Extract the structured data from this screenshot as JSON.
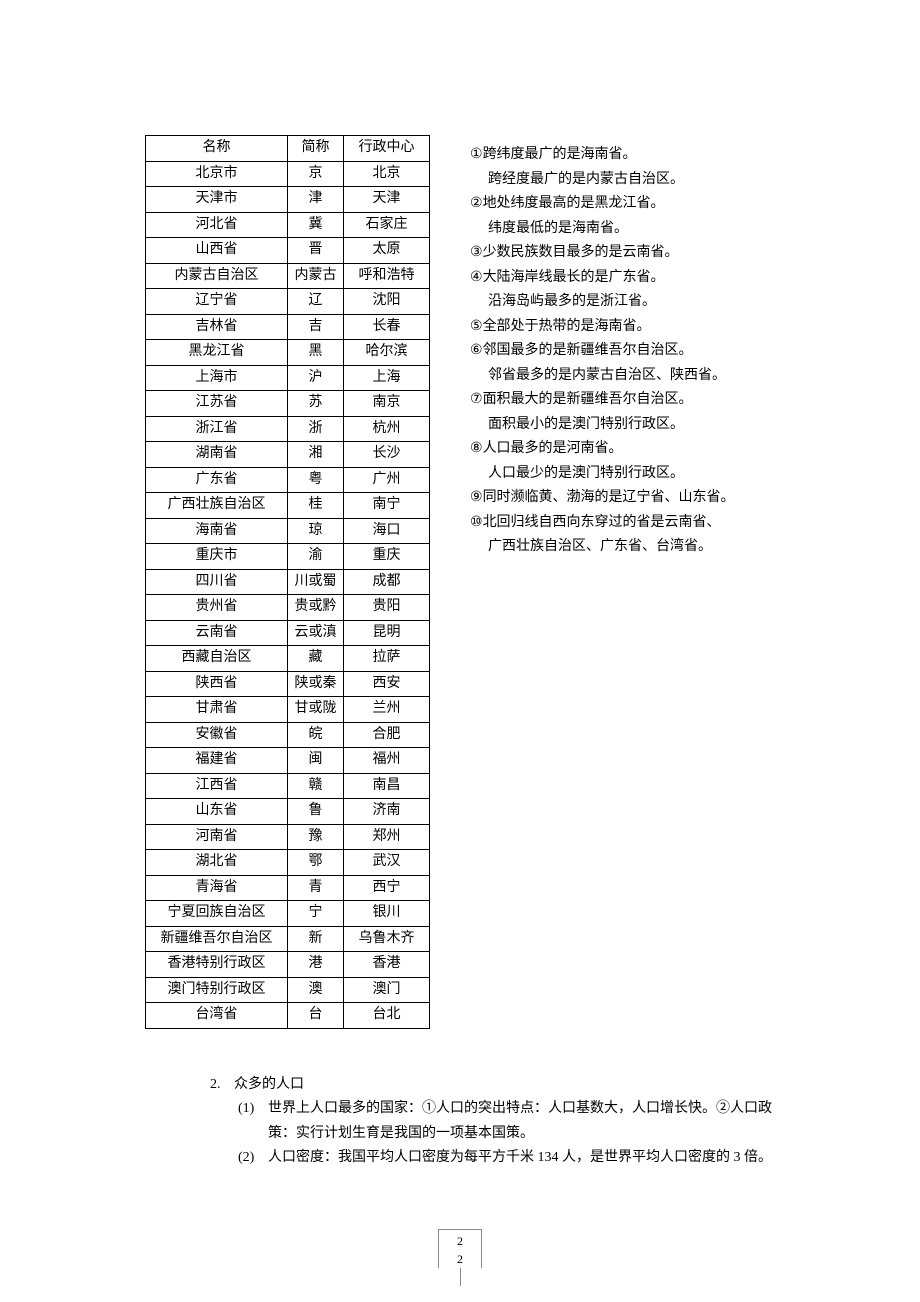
{
  "table": {
    "headers": [
      "名称",
      "简称",
      "行政中心"
    ],
    "rows": [
      [
        "北京市",
        "京",
        "北京"
      ],
      [
        "天津市",
        "津",
        "天津"
      ],
      [
        "河北省",
        "冀",
        "石家庄"
      ],
      [
        "山西省",
        "晋",
        "太原"
      ],
      [
        "内蒙古自治区",
        "内蒙古",
        "呼和浩特"
      ],
      [
        "辽宁省",
        "辽",
        "沈阳"
      ],
      [
        "吉林省",
        "吉",
        "长春"
      ],
      [
        "黑龙江省",
        "黑",
        "哈尔滨"
      ],
      [
        "上海市",
        "沪",
        "上海"
      ],
      [
        "江苏省",
        "苏",
        "南京"
      ],
      [
        "浙江省",
        "浙",
        "杭州"
      ],
      [
        "湖南省",
        "湘",
        "长沙"
      ],
      [
        "广东省",
        "粤",
        "广州"
      ],
      [
        "广西壮族自治区",
        "桂",
        "南宁"
      ],
      [
        "海南省",
        "琼",
        "海口"
      ],
      [
        "重庆市",
        "渝",
        "重庆"
      ],
      [
        "四川省",
        "川或蜀",
        "成都"
      ],
      [
        "贵州省",
        "贵或黔",
        "贵阳"
      ],
      [
        "云南省",
        "云或滇",
        "昆明"
      ],
      [
        "西藏自治区",
        "藏",
        "拉萨"
      ],
      [
        "陕西省",
        "陕或秦",
        "西安"
      ],
      [
        "甘肃省",
        "甘或陇",
        "兰州"
      ],
      [
        "安徽省",
        "皖",
        "合肥"
      ],
      [
        "福建省",
        "闽",
        "福州"
      ],
      [
        "江西省",
        "赣",
        "南昌"
      ],
      [
        "山东省",
        "鲁",
        "济南"
      ],
      [
        "河南省",
        "豫",
        "郑州"
      ],
      [
        "湖北省",
        "鄂",
        "武汉"
      ],
      [
        "青海省",
        "青",
        "西宁"
      ],
      [
        "宁夏回族自治区",
        "宁",
        "银川"
      ],
      [
        "新疆维吾尔自治区",
        "新",
        "乌鲁木齐"
      ],
      [
        "香港特别行政区",
        "港",
        "香港"
      ],
      [
        "澳门特别行政区",
        "澳",
        "澳门"
      ],
      [
        "台湾省",
        "台",
        "台北"
      ]
    ]
  },
  "facts": [
    {
      "num": "①",
      "main": "跨纬度最广的是海南省。",
      "sub": "跨经度最广的是内蒙古自治区。"
    },
    {
      "num": "②",
      "main": "地处纬度最高的是黑龙江省。",
      "sub": "纬度最低的是海南省。"
    },
    {
      "num": "③",
      "main": "少数民族数目最多的是云南省。",
      "sub": null
    },
    {
      "num": "④",
      "main": "大陆海岸线最长的是广东省。",
      "sub": "沿海岛屿最多的是浙江省。"
    },
    {
      "num": "⑤",
      "main": "全部处于热带的是海南省。",
      "sub": null
    },
    {
      "num": "⑥",
      "main": "邻国最多的是新疆维吾尔自治区。",
      "sub": "邻省最多的是内蒙古自治区、陕西省。"
    },
    {
      "num": "⑦",
      "main": "面积最大的是新疆维吾尔自治区。",
      "sub": "面积最小的是澳门特别行政区。"
    },
    {
      "num": "⑧",
      "main": "人口最多的是河南省。",
      "sub": "人口最少的是澳门特别行政区。"
    },
    {
      "num": "⑨",
      "main": "同时濒临黄、渤海的是辽宁省、山东省。",
      "sub": null
    },
    {
      "num": "⑩",
      "main": "北回归线自西向东穿过的省是云南省、",
      "sub": "广西壮族自治区、广东省、台湾省。"
    }
  ],
  "section2": {
    "num": "2.",
    "title": "众多的人口",
    "items": [
      {
        "num": "(1)",
        "text": "世界上人口最多的国家：①人口的突出特点：人口基数大，人口增长快。②人口政策：实行计划生育是我国的一项基本国策。"
      },
      {
        "num": "(2)",
        "text": "人口密度：我国平均人口密度为每平方千米 134 人，是世界平均人口密度的 3 倍。"
      }
    ]
  },
  "page": {
    "line1": "2",
    "line2": "2"
  }
}
